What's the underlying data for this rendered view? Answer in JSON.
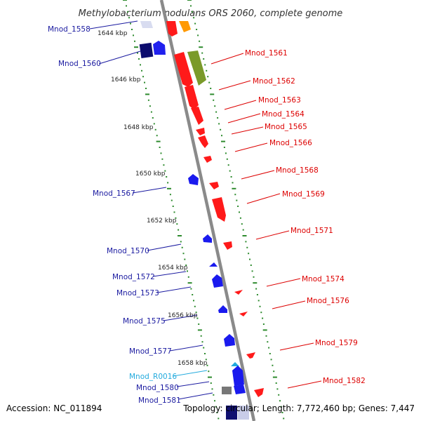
{
  "title": "Methylobacterium nodulans ORS 2060, complete genome",
  "accession": "Accession: NC_011894",
  "topology": "Topology: circular; Length: 7,772,460 bp; Genes: 7,447",
  "colors": {
    "backbone": "#8a8a8a",
    "tick_dot": "#2e8b2e",
    "forward_label": "#dd0000",
    "reverse_label": "#1a1aa0",
    "rna_label": "#22aadd"
  },
  "kbp_labels": [
    {
      "id": "1644",
      "text": "1644 kbp"
    },
    {
      "id": "1646",
      "text": "1646 kbp"
    },
    {
      "id": "1648",
      "text": "1648 kbp"
    },
    {
      "id": "1650",
      "text": "1650 kbp"
    },
    {
      "id": "1652",
      "text": "1652 kbp"
    },
    {
      "id": "1654",
      "text": "1654 kbp"
    },
    {
      "id": "1656",
      "text": "1656 kbp"
    },
    {
      "id": "1658",
      "text": "1658 kbp"
    }
  ],
  "left_genes": [
    {
      "id": "Mnod_1558",
      "label": "Mnod_1558",
      "type": "cds"
    },
    {
      "id": "Mnod_1560",
      "label": "Mnod_1560",
      "type": "cds"
    },
    {
      "id": "Mnod_1567",
      "label": "Mnod_1567",
      "type": "cds"
    },
    {
      "id": "Mnod_1570",
      "label": "Mnod_1570",
      "type": "cds"
    },
    {
      "id": "Mnod_1572",
      "label": "Mnod_1572",
      "type": "cds"
    },
    {
      "id": "Mnod_1573",
      "label": "Mnod_1573",
      "type": "cds"
    },
    {
      "id": "Mnod_1575",
      "label": "Mnod_1575",
      "type": "cds"
    },
    {
      "id": "Mnod_1577",
      "label": "Mnod_1577",
      "type": "cds"
    },
    {
      "id": "Mnod_R0016",
      "label": "Mnod_R0016",
      "type": "rna"
    },
    {
      "id": "Mnod_1580",
      "label": "Mnod_1580",
      "type": "cds"
    },
    {
      "id": "Mnod_1581",
      "label": "Mnod_1581",
      "type": "cds"
    }
  ],
  "right_genes": [
    {
      "id": "Mnod_1561",
      "label": "Mnod_1561"
    },
    {
      "id": "Mnod_1562",
      "label": "Mnod_1562"
    },
    {
      "id": "Mnod_1563",
      "label": "Mnod_1563"
    },
    {
      "id": "Mnod_1564",
      "label": "Mnod_1564"
    },
    {
      "id": "Mnod_1565",
      "label": "Mnod_1565"
    },
    {
      "id": "Mnod_1566",
      "label": "Mnod_1566"
    },
    {
      "id": "Mnod_1568",
      "label": "Mnod_1568"
    },
    {
      "id": "Mnod_1569",
      "label": "Mnod_1569"
    },
    {
      "id": "Mnod_1571",
      "label": "Mnod_1571"
    },
    {
      "id": "Mnod_1574",
      "label": "Mnod_1574"
    },
    {
      "id": "Mnod_1576",
      "label": "Mnod_1576"
    },
    {
      "id": "Mnod_1579",
      "label": "Mnod_1579"
    },
    {
      "id": "Mnod_1582",
      "label": "Mnod_1582"
    }
  ]
}
